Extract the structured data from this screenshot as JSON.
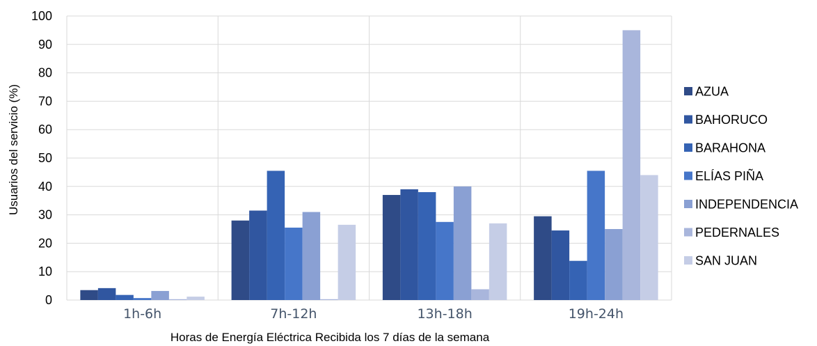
{
  "chart_data": {
    "type": "bar",
    "categories": [
      "1h-6h",
      "7h-12h",
      "13h-18h",
      "19h-24h"
    ],
    "series": [
      {
        "name": "AZUA",
        "color": "#2f4b87",
        "values": [
          3.5,
          28,
          37,
          29.5
        ]
      },
      {
        "name": "BAHORUCO",
        "color": "#3056a0",
        "values": [
          4.2,
          31.5,
          39,
          24.5
        ]
      },
      {
        "name": "BARAHONA",
        "color": "#3563b4",
        "values": [
          1.8,
          45.5,
          38,
          13.8
        ]
      },
      {
        "name": "ELÍAS PIÑA",
        "color": "#4676c9",
        "values": [
          0.7,
          25.5,
          27.5,
          45.5
        ]
      },
      {
        "name": "INDEPENDENCIA",
        "color": "#8aa0d3",
        "values": [
          3.2,
          31,
          40,
          25
        ]
      },
      {
        "name": "PEDERNALES",
        "color": "#a9b6dc",
        "values": [
          0.3,
          0.3,
          3.8,
          95
        ]
      },
      {
        "name": "SAN JUAN",
        "color": "#c5cde6",
        "values": [
          1.2,
          26.5,
          27,
          44
        ]
      }
    ],
    "xlabel": "Horas de Energía Eléctrica Recibida los 7 días de la semana",
    "ylabel": "Usuarios del servicio (%)",
    "ylim": [
      0,
      100
    ],
    "yticks": [
      0,
      10,
      20,
      30,
      40,
      50,
      60,
      70,
      80,
      90,
      100
    ],
    "grid": true,
    "legend_position": "right"
  }
}
